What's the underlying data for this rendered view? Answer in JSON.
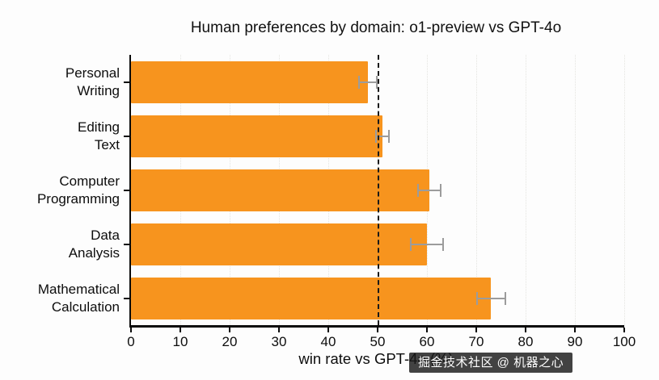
{
  "title": "Human preferences by domain: o1-preview vs GPT-4o",
  "watermark": "掘金技术社区 @ 机器之心",
  "chart_data": {
    "type": "bar",
    "orientation": "horizontal",
    "title": "Human preferences by domain: o1-preview vs GPT-4o",
    "xlabel": "win rate vs GPT-4o (%)",
    "categories": [
      "Personal\nWriting",
      "Editing\nText",
      "Computer\nProgramming",
      "Data\nAnalysis",
      "Mathematical\nCalculation"
    ],
    "values": [
      48,
      51,
      60.5,
      60,
      73
    ],
    "errors": [
      2,
      1.5,
      2.5,
      3.5,
      3
    ],
    "xlim": [
      0,
      100
    ],
    "xticks": [
      0,
      10,
      20,
      30,
      40,
      50,
      60,
      70,
      80,
      90,
      100
    ],
    "reference_line_x": 50,
    "bar_color": "#F7941E",
    "error_color": "#9c9c9c",
    "reference_line_style": "dashed",
    "grid": "faint dotted vertical",
    "legend": "none"
  }
}
